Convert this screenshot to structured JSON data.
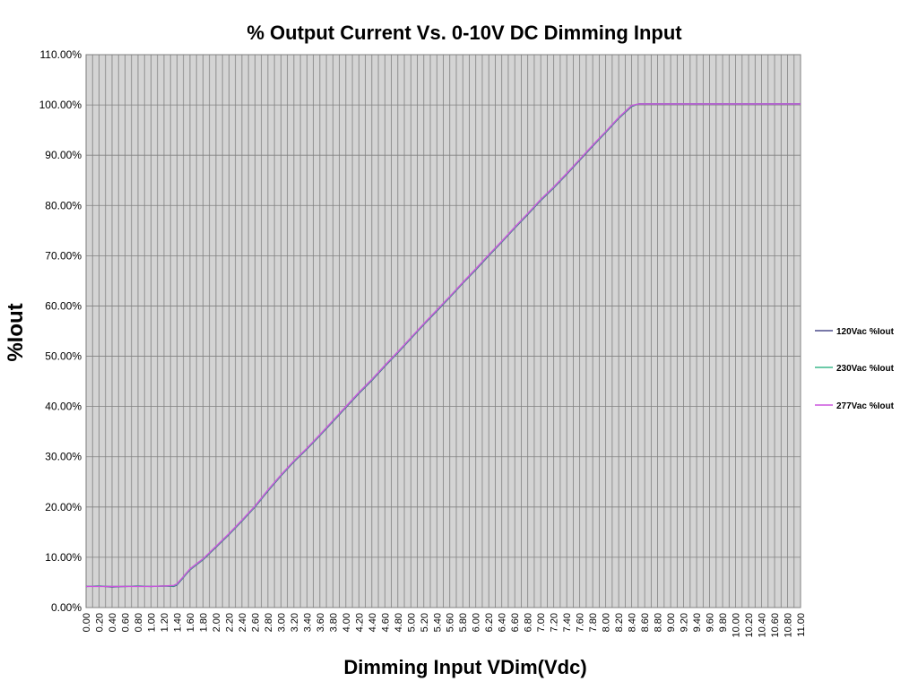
{
  "chart_data": {
    "type": "line",
    "title": "% Output Current Vs. 0-10V DC Dimming Input",
    "xlabel": "Dimming Input VDim(Vdc)",
    "ylabel": "%Iout",
    "xlim": [
      0,
      11
    ],
    "ylim": [
      0,
      1.1
    ],
    "x_step": 0.1,
    "y_step": 0.1,
    "grid": true,
    "legend_position": "right",
    "plot_background": "#d4d4d4",
    "grid_color": "#808080",
    "series": [
      {
        "name": "120Vac %Iout",
        "color": "#4b4b8c",
        "x": [
          0.0,
          0.2,
          0.4,
          0.6,
          0.8,
          1.0,
          1.2,
          1.35,
          1.4,
          1.5,
          1.6,
          1.8,
          2.0,
          2.2,
          2.4,
          2.6,
          2.8,
          3.0,
          3.2,
          3.4,
          3.6,
          3.8,
          4.0,
          4.2,
          4.4,
          4.6,
          4.8,
          5.0,
          5.2,
          5.4,
          5.6,
          5.8,
          6.0,
          6.2,
          6.4,
          6.6,
          6.8,
          7.0,
          7.2,
          7.4,
          7.6,
          7.8,
          8.0,
          8.2,
          8.4,
          8.5,
          8.6,
          9.0,
          10.0,
          11.0
        ],
        "values": [
          0.042,
          0.043,
          0.041,
          0.042,
          0.043,
          0.042,
          0.043,
          0.042,
          0.045,
          0.06,
          0.075,
          0.095,
          0.12,
          0.145,
          0.172,
          0.2,
          0.232,
          0.262,
          0.29,
          0.315,
          0.342,
          0.37,
          0.398,
          0.426,
          0.452,
          0.48,
          0.507,
          0.535,
          0.563,
          0.59,
          0.617,
          0.645,
          0.672,
          0.7,
          0.727,
          0.755,
          0.782,
          0.81,
          0.835,
          0.862,
          0.89,
          0.918,
          0.945,
          0.973,
          0.997,
          1.002,
          1.002,
          1.002,
          1.002,
          1.002
        ]
      },
      {
        "name": "230Vac %Iout",
        "color": "#3cb98c",
        "x": [
          0.0,
          0.2,
          0.4,
          0.6,
          0.8,
          1.0,
          1.2,
          1.35,
          1.4,
          1.5,
          1.6,
          1.8,
          2.0,
          2.2,
          2.4,
          2.6,
          2.8,
          3.0,
          3.2,
          3.4,
          3.6,
          3.8,
          4.0,
          4.2,
          4.4,
          4.6,
          4.8,
          5.0,
          5.2,
          5.4,
          5.6,
          5.8,
          6.0,
          6.2,
          6.4,
          6.6,
          6.8,
          7.0,
          7.2,
          7.4,
          7.6,
          7.8,
          8.0,
          8.2,
          8.4,
          8.5,
          8.6,
          9.0,
          10.0,
          11.0
        ],
        "values": [
          0.042,
          0.043,
          0.042,
          0.042,
          0.043,
          0.042,
          0.043,
          0.043,
          0.046,
          0.061,
          0.076,
          0.096,
          0.121,
          0.146,
          0.173,
          0.201,
          0.233,
          0.263,
          0.291,
          0.316,
          0.343,
          0.371,
          0.399,
          0.427,
          0.453,
          0.481,
          0.508,
          0.536,
          0.564,
          0.591,
          0.618,
          0.646,
          0.673,
          0.701,
          0.728,
          0.756,
          0.783,
          0.811,
          0.836,
          0.863,
          0.891,
          0.919,
          0.946,
          0.974,
          0.998,
          1.002,
          1.002,
          1.002,
          1.002,
          1.002
        ]
      },
      {
        "name": "277Vac %Iout",
        "color": "#cc55dd",
        "x": [
          0.0,
          0.2,
          0.4,
          0.6,
          0.8,
          1.0,
          1.2,
          1.35,
          1.4,
          1.5,
          1.6,
          1.8,
          2.0,
          2.2,
          2.4,
          2.6,
          2.8,
          3.0,
          3.2,
          3.4,
          3.6,
          3.8,
          4.0,
          4.2,
          4.4,
          4.6,
          4.8,
          5.0,
          5.2,
          5.4,
          5.6,
          5.8,
          6.0,
          6.2,
          6.4,
          6.6,
          6.8,
          7.0,
          7.2,
          7.4,
          7.6,
          7.8,
          8.0,
          8.2,
          8.4,
          8.5,
          8.6,
          9.0,
          10.0,
          11.0
        ],
        "values": [
          0.042,
          0.042,
          0.042,
          0.042,
          0.042,
          0.042,
          0.043,
          0.044,
          0.047,
          0.062,
          0.077,
          0.097,
          0.122,
          0.147,
          0.174,
          0.202,
          0.234,
          0.264,
          0.292,
          0.317,
          0.344,
          0.372,
          0.4,
          0.428,
          0.454,
          0.482,
          0.509,
          0.537,
          0.565,
          0.592,
          0.619,
          0.647,
          0.674,
          0.702,
          0.729,
          0.757,
          0.784,
          0.812,
          0.837,
          0.864,
          0.892,
          0.92,
          0.947,
          0.975,
          0.999,
          1.002,
          1.002,
          1.002,
          1.002,
          1.002
        ]
      }
    ]
  }
}
